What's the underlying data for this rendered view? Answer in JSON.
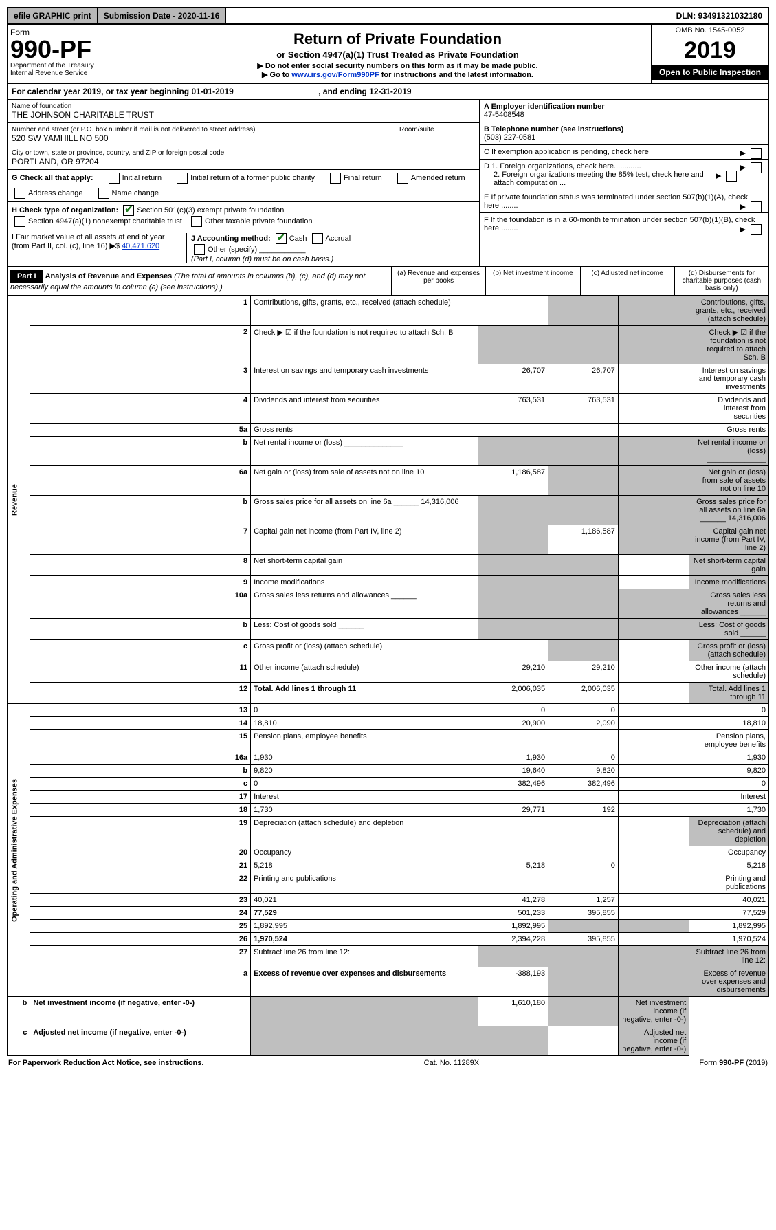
{
  "topbar": {
    "efile": "efile GRAPHIC print",
    "subdate_label": "Submission Date - 2020-11-16",
    "dln": "DLN: 93491321032180"
  },
  "header": {
    "form_word": "Form",
    "form_no": "990-PF",
    "dept": "Department of the Treasury",
    "irs": "Internal Revenue Service",
    "title": "Return of Private Foundation",
    "subtitle": "or Section 4947(a)(1) Trust Treated as Private Foundation",
    "warn1": "▶ Do not enter social security numbers on this form as it may be made public.",
    "warn2": "▶ Go to www.irs.gov/Form990PF for instructions and the latest information.",
    "omb": "OMB No. 1545-0052",
    "year": "2019",
    "open": "Open to Public Inspection"
  },
  "cal": {
    "text": "For calendar year 2019, or tax year beginning 01-01-2019",
    "end": ", and ending 12-31-2019"
  },
  "id": {
    "name_lbl": "Name of foundation",
    "name": "THE JOHNSON CHARITABLE TRUST",
    "addr_lbl": "Number and street (or P.O. box number if mail is not delivered to street address)",
    "addr": "520 SW YAMHILL NO 500",
    "room_lbl": "Room/suite",
    "city_lbl": "City or town, state or province, country, and ZIP or foreign postal code",
    "city": "PORTLAND, OR  97204",
    "ein_lbl": "A Employer identification number",
    "ein": "47-5408548",
    "tel_lbl": "B Telephone number (see instructions)",
    "tel": "(503) 227-0581",
    "c": "C If exemption application is pending, check here",
    "d1": "D 1. Foreign organizations, check here.............",
    "d2": "2. Foreign organizations meeting the 85% test, check here and attach computation ...",
    "e": "E  If private foundation status was terminated under section 507(b)(1)(A), check here ........",
    "f": "F  If the foundation is in a 60-month termination under section 507(b)(1)(B), check here ........"
  },
  "g": {
    "lbl": "G Check all that apply:",
    "opts": [
      "Initial return",
      "Initial return of a former public charity",
      "Final return",
      "Amended return",
      "Address change",
      "Name change"
    ]
  },
  "h": {
    "lbl": "H Check type of organization:",
    "o1": "Section 501(c)(3) exempt private foundation",
    "o2": "Section 4947(a)(1) nonexempt charitable trust",
    "o3": "Other taxable private foundation"
  },
  "i": {
    "lbl": "I Fair market value of all assets at end of year (from Part II, col. (c), line 16) ▶$",
    "val": "40,471,620"
  },
  "j": {
    "lbl": "J Accounting method:",
    "cash": "Cash",
    "accrual": "Accrual",
    "other": "Other (specify)",
    "note": "(Part I, column (d) must be on cash basis.)"
  },
  "part1": {
    "hdr": "Part I",
    "title": "Analysis of Revenue and Expenses",
    "note": "(The total of amounts in columns (b), (c), and (d) may not necessarily equal the amounts in column (a) (see instructions).)",
    "cols": {
      "a": "(a)  Revenue and expenses per books",
      "b": "(b)  Net investment income",
      "c": "(c)  Adjusted net income",
      "d": "(d)  Disbursements for charitable purposes (cash basis only)"
    }
  },
  "rev_label": "Revenue",
  "exp_label": "Operating and Administrative Expenses",
  "rows": [
    {
      "n": "1",
      "d": "Contributions, gifts, grants, etc., received (attach schedule)",
      "a": "",
      "b": "",
      "shade_b": true,
      "shade_c": true,
      "shade_d": true
    },
    {
      "n": "2",
      "d": "Check ▶ ☑ if the foundation is not required to attach Sch. B",
      "a": "",
      "shade_a": true,
      "shade_b": true,
      "shade_c": true,
      "shade_d": true
    },
    {
      "n": "3",
      "d": "Interest on savings and temporary cash investments",
      "a": "26,707",
      "b": "26,707"
    },
    {
      "n": "4",
      "d": "Dividends and interest from securities",
      "a": "763,531",
      "b": "763,531"
    },
    {
      "n": "5a",
      "d": "Gross rents",
      "a": "",
      "b": ""
    },
    {
      "n": "b",
      "d": "Net rental income or (loss)  ______________",
      "shade_a": true,
      "shade_b": true,
      "shade_c": true,
      "shade_d": true
    },
    {
      "n": "6a",
      "d": "Net gain or (loss) from sale of assets not on line 10",
      "a": "1,186,587",
      "shade_b": true,
      "shade_c": true,
      "shade_d": true
    },
    {
      "n": "b",
      "d": "Gross sales price for all assets on line 6a ______ 14,316,006",
      "shade_a": true,
      "shade_b": true,
      "shade_c": true,
      "shade_d": true
    },
    {
      "n": "7",
      "d": "Capital gain net income (from Part IV, line 2)",
      "shade_a": true,
      "b": "1,186,587",
      "shade_c": true,
      "shade_d": true
    },
    {
      "n": "8",
      "d": "Net short-term capital gain",
      "shade_a": true,
      "shade_b": true,
      "shade_d": true
    },
    {
      "n": "9",
      "d": "Income modifications",
      "shade_a": true,
      "shade_b": true,
      "shade_d": true
    },
    {
      "n": "10a",
      "d": "Gross sales less returns and allowances  ______",
      "shade_a": true,
      "shade_b": true,
      "shade_c": true,
      "shade_d": true
    },
    {
      "n": "b",
      "d": "Less: Cost of goods sold        ______",
      "shade_a": true,
      "shade_b": true,
      "shade_c": true,
      "shade_d": true
    },
    {
      "n": "c",
      "d": "Gross profit or (loss) (attach schedule)",
      "shade_b": true,
      "shade_d": true
    },
    {
      "n": "11",
      "d": "Other income (attach schedule)",
      "a": "29,210",
      "b": "29,210"
    },
    {
      "n": "12",
      "d": "Total. Add lines 1 through 11",
      "bold": true,
      "a": "2,006,035",
      "b": "2,006,035",
      "shade_d": true
    },
    {
      "n": "13",
      "d": "0",
      "a": "0",
      "b": "0"
    },
    {
      "n": "14",
      "d": "18,810",
      "a": "20,900",
      "b": "2,090"
    },
    {
      "n": "15",
      "d": "Pension plans, employee benefits"
    },
    {
      "n": "16a",
      "d": "1,930",
      "a": "1,930",
      "b": "0"
    },
    {
      "n": "b",
      "d": "9,820",
      "a": "19,640",
      "b": "9,820"
    },
    {
      "n": "c",
      "d": "0",
      "a": "382,496",
      "b": "382,496"
    },
    {
      "n": "17",
      "d": "Interest"
    },
    {
      "n": "18",
      "d": "1,730",
      "a": "29,771",
      "b": "192"
    },
    {
      "n": "19",
      "d": "Depreciation (attach schedule) and depletion",
      "shade_d": true
    },
    {
      "n": "20",
      "d": "Occupancy"
    },
    {
      "n": "21",
      "d": "5,218",
      "a": "5,218",
      "b": "0"
    },
    {
      "n": "22",
      "d": "Printing and publications"
    },
    {
      "n": "23",
      "d": "40,021",
      "a": "41,278",
      "b": "1,257"
    },
    {
      "n": "24",
      "d": "77,529",
      "bold": true,
      "a": "501,233",
      "b": "395,855"
    },
    {
      "n": "25",
      "d": "1,892,995",
      "a": "1,892,995",
      "shade_b": true,
      "shade_c": true
    },
    {
      "n": "26",
      "d": "1,970,524",
      "bold": true,
      "a": "2,394,228",
      "b": "395,855"
    },
    {
      "n": "27",
      "d": "Subtract line 26 from line 12:",
      "shade_a": true,
      "shade_b": true,
      "shade_c": true,
      "shade_d": true
    },
    {
      "n": "a",
      "d": "Excess of revenue over expenses and disbursements",
      "bold": true,
      "a": "-388,193",
      "shade_b": true,
      "shade_c": true,
      "shade_d": true
    },
    {
      "n": "b",
      "d": "Net investment income (if negative, enter -0-)",
      "bold": true,
      "shade_a": true,
      "b": "1,610,180",
      "shade_c": true,
      "shade_d": true
    },
    {
      "n": "c",
      "d": "Adjusted net income (if negative, enter -0-)",
      "bold": true,
      "shade_a": true,
      "shade_b": true,
      "shade_d": true
    }
  ],
  "footer": {
    "left": "For Paperwork Reduction Act Notice, see instructions.",
    "mid": "Cat. No. 11289X",
    "right": "Form 990-PF (2019)"
  }
}
